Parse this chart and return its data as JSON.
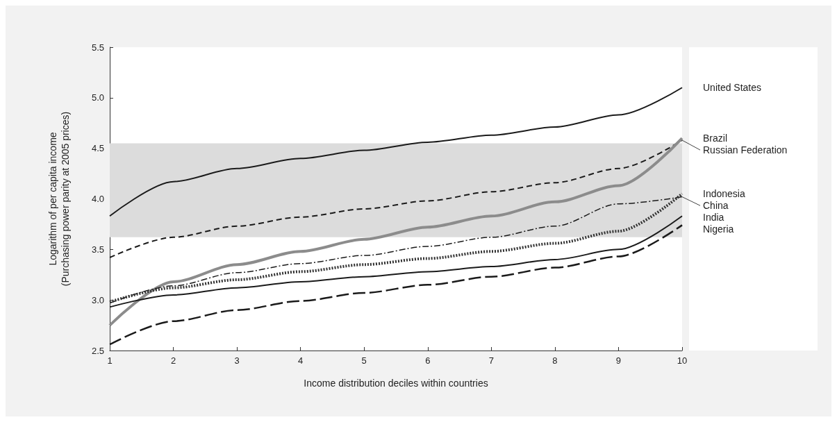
{
  "chart_data": {
    "type": "line",
    "xlabel": "Income distribution deciles within countries",
    "ylabel": "Logarithm of per capita income\n(Purchasing power parity at 2005 prices)",
    "x": [
      1,
      2,
      3,
      4,
      5,
      6,
      7,
      8,
      9,
      10
    ],
    "xlim": [
      1,
      10
    ],
    "xticks": [
      1,
      2,
      3,
      4,
      5,
      6,
      7,
      8,
      9,
      10
    ],
    "ylim": [
      2.5,
      5.5
    ],
    "yticks": [
      {
        "value": 2.5,
        "label": "2.5"
      },
      {
        "value": 3,
        "label": "3.0"
      },
      {
        "value": 3.5,
        "label": "3.5"
      },
      {
        "value": 4,
        "label": "4.0"
      },
      {
        "value": 4.5,
        "label": "4.5"
      },
      {
        "value": 5,
        "label": "5.0"
      },
      {
        "value": 5.5,
        "label": "5.5"
      }
    ],
    "grid": false,
    "legend": false,
    "marker": "none",
    "bands": [
      {
        "axis": "y",
        "from": 3.62,
        "to": 4.55,
        "color": "#dcdcdc"
      }
    ],
    "series": [
      {
        "name": "United States",
        "color": "#1a1a1a",
        "line_style": "solid",
        "values": [
          3.83,
          4.17,
          4.3,
          4.4,
          4.48,
          4.56,
          4.63,
          4.71,
          4.83,
          5.1
        ]
      },
      {
        "name": "Russian Federation",
        "color": "#1a1a1a",
        "line_style": "dashed",
        "values": [
          3.42,
          3.62,
          3.73,
          3.82,
          3.9,
          3.98,
          4.07,
          4.16,
          4.3,
          4.58
        ]
      },
      {
        "name": "Brazil",
        "color": "#8c8c8c",
        "line_style": "solid",
        "values": [
          2.75,
          3.18,
          3.35,
          3.48,
          3.6,
          3.72,
          3.83,
          3.97,
          4.13,
          4.6
        ]
      },
      {
        "name": "China",
        "color": "#1a1a1a",
        "line_style": "dashdot",
        "values": [
          2.97,
          3.14,
          3.27,
          3.36,
          3.44,
          3.53,
          3.62,
          3.73,
          3.95,
          4.02
        ]
      },
      {
        "name": "Indonesia",
        "color": "#333333",
        "line_style": "dotted",
        "values": [
          2.98,
          3.12,
          3.2,
          3.28,
          3.35,
          3.41,
          3.48,
          3.56,
          3.68,
          4.05
        ]
      },
      {
        "name": "India",
        "color": "#1a1a1a",
        "line_style": "solid",
        "values": [
          2.93,
          3.05,
          3.12,
          3.18,
          3.23,
          3.28,
          3.33,
          3.4,
          3.5,
          3.83
        ]
      },
      {
        "name": "Nigeria",
        "color": "#1a1a1a",
        "line_style": "longdash",
        "values": [
          2.56,
          2.79,
          2.9,
          2.99,
          3.07,
          3.15,
          3.23,
          3.32,
          3.43,
          3.74
        ]
      }
    ]
  }
}
